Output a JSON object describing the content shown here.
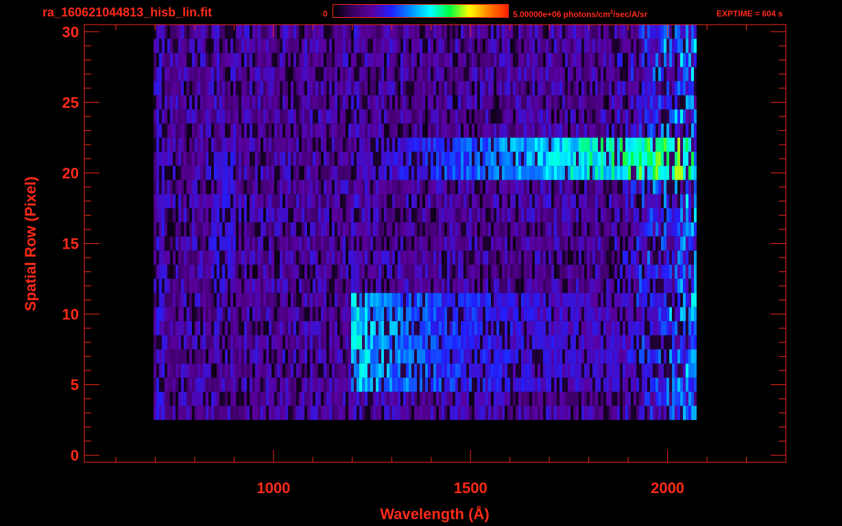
{
  "header": {
    "title": "ra_160621044813_hisb_lin.fit",
    "colorbar_min": "0",
    "colorbar_max_value": "5.00000e+06",
    "colorbar_unit_a": "photons/cm",
    "colorbar_unit_sup": "2",
    "colorbar_unit_b": "/sec/A/sr",
    "exptime": "EXPTIME = 604 s"
  },
  "colors": {
    "axis": "#ff2a1a",
    "background": "#000000",
    "colormap": [
      "#000000",
      "#3a0060",
      "#5a00a0",
      "#2020ff",
      "#0090ff",
      "#00ffff",
      "#00ff40",
      "#ffff00",
      "#ff8000",
      "#ff2000"
    ]
  },
  "chart_data": {
    "type": "heatmap",
    "title": "ra_160621044813_hisb_lin.fit",
    "xlabel": "Wavelength (Å)",
    "ylabel": "Spatial Row (Pixel)",
    "xlim": [
      520,
      2300
    ],
    "ylim": [
      -0.5,
      30.5
    ],
    "xticks": [
      1000,
      1500,
      2000
    ],
    "yticks": [
      0,
      5,
      10,
      15,
      20,
      25,
      30
    ],
    "data_extent": {
      "x": [
        690,
        2070
      ],
      "rows": [
        3,
        30
      ]
    },
    "colorbar": {
      "min": 0,
      "max": 5000000,
      "unit": "photons/cm2/sec/A/sr"
    },
    "features": [
      {
        "name": "bright band",
        "rows": [
          20,
          22
        ],
        "x": [
          1200,
          2060
        ],
        "peak_x": 2000,
        "level": 0.7
      },
      {
        "name": "bright band",
        "rows": [
          5,
          11
        ],
        "x": [
          1190,
          2060
        ],
        "peak_x": 1210,
        "level": 0.55
      },
      {
        "name": "vertical line",
        "rows": [
          3,
          30
        ],
        "x": [
          700,
          720
        ],
        "level": 0.3
      },
      {
        "name": "arc feature",
        "rows": [
          12,
          21
        ],
        "x": [
          840,
          900
        ],
        "level": 0.3
      },
      {
        "name": "vertical line",
        "rows": [
          3,
          30
        ],
        "x": [
          1200,
          1215
        ],
        "level": 0.28
      }
    ]
  }
}
